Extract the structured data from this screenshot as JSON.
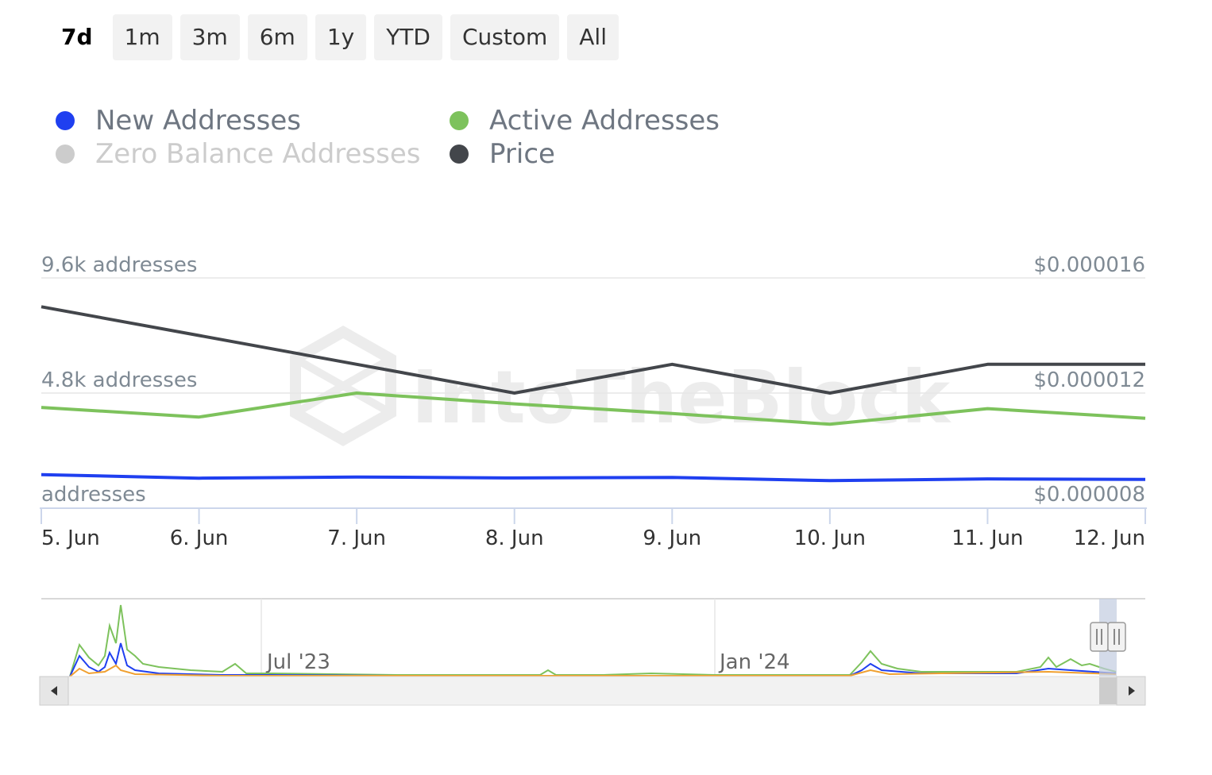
{
  "range_buttons": [
    {
      "label": "7d",
      "active": true
    },
    {
      "label": "1m",
      "active": false
    },
    {
      "label": "3m",
      "active": false
    },
    {
      "label": "6m",
      "active": false
    },
    {
      "label": "1y",
      "active": false
    },
    {
      "label": "YTD",
      "active": false
    },
    {
      "label": "Custom",
      "active": false
    },
    {
      "label": "All",
      "active": false
    }
  ],
  "legend": [
    {
      "name": "New Addresses",
      "color": "#1f3ff0",
      "visible": true
    },
    {
      "name": "Active Addresses",
      "color": "#7dc25c",
      "visible": true
    },
    {
      "name": "Zero Balance Addresses",
      "color": "#cccccc",
      "visible": false
    },
    {
      "name": "Price",
      "color": "#43464b",
      "visible": true
    }
  ],
  "watermark": "IntoTheBlock",
  "chart_data": {
    "type": "line",
    "x": [
      "5. Jun",
      "6. Jun",
      "7. Jun",
      "8. Jun",
      "9. Jun",
      "10. Jun",
      "11. Jun",
      "12. Jun"
    ],
    "y_left": {
      "ticks": [
        "9.6k addresses",
        "4.8k addresses",
        "addresses"
      ],
      "range": [
        0,
        9600
      ]
    },
    "y_right": {
      "ticks": [
        "$0.000016",
        "$0.000012",
        "$0.000008"
      ],
      "range": [
        8e-06,
        1.6e-05
      ]
    },
    "series": [
      {
        "name": "New Addresses",
        "axis": "left",
        "color": "#1f3ff0",
        "values": [
          1400,
          1250,
          1300,
          1260,
          1280,
          1150,
          1220,
          1200
        ]
      },
      {
        "name": "Active Addresses",
        "axis": "left",
        "color": "#7dc25c",
        "values": [
          4200,
          3800,
          4800,
          4350,
          3950,
          3500,
          4150,
          3750
        ]
      },
      {
        "name": "Price",
        "axis": "right",
        "color": "#43464b",
        "values": [
          1.5e-05,
          1.4e-05,
          1.3e-05,
          1.2e-05,
          1.3e-05,
          1.2e-05,
          1.3e-05,
          1.3e-05
        ]
      }
    ],
    "grid": true,
    "legend_position": "top-left"
  },
  "navigator": {
    "labels": [
      "Jul '23",
      "Jan '24"
    ],
    "scroll_left_icon": "triangle-left",
    "scroll_right_icon": "triangle-right",
    "handle_icon": "grip-handle"
  }
}
